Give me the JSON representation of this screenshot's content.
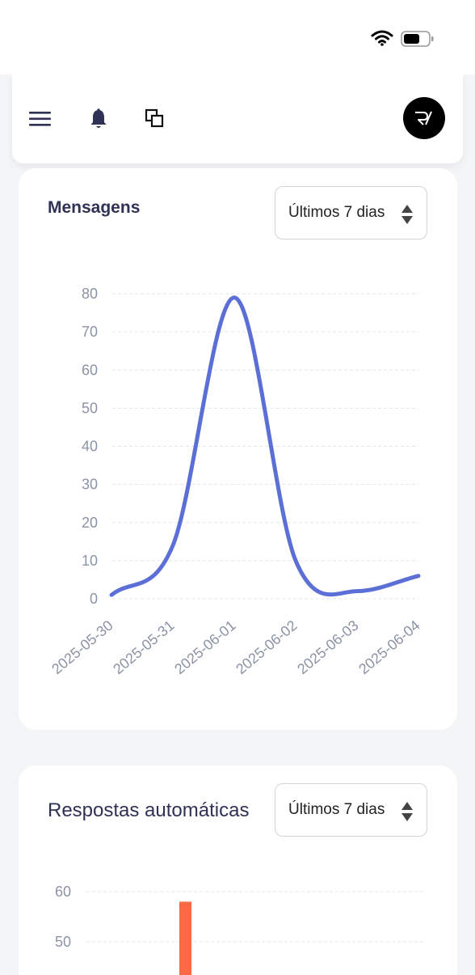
{
  "header": {
    "avatar_label": "RV"
  },
  "icons": {
    "menu": "hamburger-menu-icon",
    "notifications": "bell-icon",
    "windows": "overlapping-windows-icon",
    "wifi": "wifi-icon",
    "battery": "battery-icon"
  },
  "colors": {
    "line_series": "#5b6fd6",
    "bar_series": "#fb6a44",
    "title": "#2f3254",
    "axis_text": "#8a94a6"
  },
  "cards": {
    "messages": {
      "title": "Mensagens",
      "period_select": "Últimos 7 dias"
    },
    "auto_replies": {
      "title": "Respostas automáticas",
      "period_select": "Últimos 7 dias"
    }
  },
  "chart_data": [
    {
      "type": "line",
      "title": "Mensagens",
      "x": [
        "2025-05-30",
        "2025-05-31",
        "2025-06-01",
        "2025-06-02",
        "2025-06-03",
        "2025-06-04"
      ],
      "series": [
        {
          "values": [
            1,
            14,
            79,
            10,
            2,
            6
          ]
        }
      ],
      "ylim": [
        0,
        80
      ],
      "yticks": [
        0,
        10,
        20,
        30,
        40,
        50,
        60,
        70,
        80
      ],
      "grid": true,
      "smooth": true
    },
    {
      "type": "bar",
      "title": "Respostas automáticas",
      "visible_yticks": [
        60,
        50
      ],
      "series": [
        {
          "values": [
            58
          ]
        }
      ],
      "grid": true
    }
  ]
}
